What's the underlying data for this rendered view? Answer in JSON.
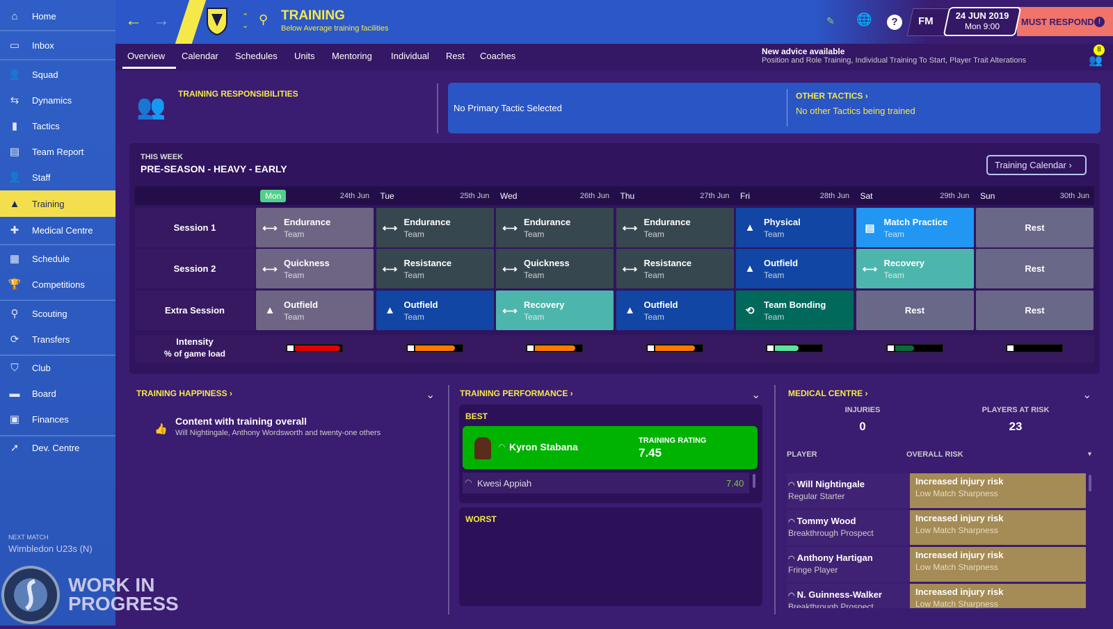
{
  "sidebar": {
    "items": [
      {
        "label": "Home",
        "icon": "home-icon"
      },
      {
        "label": "Inbox",
        "icon": "inbox-icon"
      },
      {
        "label": "Squad",
        "icon": "squad-icon"
      },
      {
        "label": "Dynamics",
        "icon": "dynamics-icon"
      },
      {
        "label": "Tactics",
        "icon": "tactics-icon"
      },
      {
        "label": "Team Report",
        "icon": "report-icon"
      },
      {
        "label": "Staff",
        "icon": "staff-icon"
      },
      {
        "label": "Training",
        "icon": "training-cone-icon",
        "active": true
      },
      {
        "label": "Medical Centre",
        "icon": "medical-icon"
      },
      {
        "label": "Schedule",
        "icon": "calendar-icon"
      },
      {
        "label": "Competitions",
        "icon": "trophy-icon"
      },
      {
        "label": "Scouting",
        "icon": "search-icon"
      },
      {
        "label": "Transfers",
        "icon": "transfer-icon"
      },
      {
        "label": "Club",
        "icon": "shield-icon"
      },
      {
        "label": "Board",
        "icon": "board-icon"
      },
      {
        "label": "Finances",
        "icon": "money-icon"
      },
      {
        "label": "Dev. Centre",
        "icon": "dev-icon"
      }
    ],
    "next_match_label": "NEXT MATCH",
    "next_match": "Wimbledon U23s (N)"
  },
  "watermark": {
    "line1": "WORK IN",
    "line2": "PROGRESS",
    "logo_text": "SPORTS INTERACTIVE www.sigames.com"
  },
  "header": {
    "title": "TRAINING",
    "subtitle": "Below Average training facilities",
    "date": "24 JUN 2019",
    "time": "Mon 9:00",
    "fm": "FM",
    "must_respond": "MUST RESPOND",
    "help": "?"
  },
  "tabs": [
    "Overview",
    "Calendar",
    "Schedules",
    "Units",
    "Mentoring",
    "Individual",
    "Rest",
    "Coaches"
  ],
  "advice": {
    "title": "New advice available",
    "text": "Position and Role Training, Individual Training To Start, Player Trait Alterations",
    "badge": "8"
  },
  "responsibilities": {
    "title": "TRAINING RESPONSIBILITIES"
  },
  "tactics": {
    "primary": "No Primary Tactic Selected",
    "other_title": "OTHER TACTICS",
    "other_text": "No other Tactics being trained"
  },
  "week": {
    "label": "THIS WEEK",
    "title": "PRE-SEASON - HEAVY - EARLY",
    "calendar_button": "Training Calendar",
    "days": [
      {
        "day": "Mon",
        "date": "24th Jun"
      },
      {
        "day": "Tue",
        "date": "25th Jun"
      },
      {
        "day": "Wed",
        "date": "26th Jun"
      },
      {
        "day": "Thu",
        "date": "27th Jun"
      },
      {
        "day": "Fri",
        "date": "28th Jun"
      },
      {
        "day": "Sat",
        "date": "29th Jun"
      },
      {
        "day": "Sun",
        "date": "30th Jun"
      }
    ],
    "rows": [
      {
        "label": "Session 1",
        "cells": [
          {
            "name": "Endurance",
            "unit": "Team",
            "icon": "dumbbell-icon",
            "color": "#6e6584"
          },
          {
            "name": "Endurance",
            "unit": "Team",
            "icon": "dumbbell-icon",
            "color": "#37474f"
          },
          {
            "name": "Endurance",
            "unit": "Team",
            "icon": "dumbbell-icon",
            "color": "#37474f"
          },
          {
            "name": "Endurance",
            "unit": "Team",
            "icon": "dumbbell-icon",
            "color": "#37474f"
          },
          {
            "name": "Physical",
            "unit": "Team",
            "icon": "cone-icon",
            "color": "#1146a4"
          },
          {
            "name": "Match Practice",
            "unit": "Team",
            "icon": "clipboard-icon",
            "color": "#2196f3"
          },
          {
            "name": "Rest",
            "color": "#6a6888"
          }
        ]
      },
      {
        "label": "Session 2",
        "cells": [
          {
            "name": "Quickness",
            "unit": "Team",
            "icon": "dumbbell-icon",
            "color": "#6e6584"
          },
          {
            "name": "Resistance",
            "unit": "Team",
            "icon": "dumbbell-icon",
            "color": "#37474f"
          },
          {
            "name": "Quickness",
            "unit": "Team",
            "icon": "dumbbell-icon",
            "color": "#37474f"
          },
          {
            "name": "Resistance",
            "unit": "Team",
            "icon": "dumbbell-icon",
            "color": "#37474f"
          },
          {
            "name": "Outfield",
            "unit": "Team",
            "icon": "cone-icon",
            "color": "#1146a4"
          },
          {
            "name": "Recovery",
            "unit": "Team",
            "icon": "dumbbell-icon",
            "color": "#4db6ac"
          },
          {
            "name": "Rest",
            "color": "#6a6888"
          }
        ]
      },
      {
        "label": "Extra Session",
        "cells": [
          {
            "name": "Outfield",
            "unit": "Team",
            "icon": "cone-icon",
            "color": "#6e6584"
          },
          {
            "name": "Outfield",
            "unit": "Team",
            "icon": "cone-icon",
            "color": "#1146a4"
          },
          {
            "name": "Recovery",
            "unit": "Team",
            "icon": "dumbbell-icon",
            "color": "#4db6ac"
          },
          {
            "name": "Outfield",
            "unit": "Team",
            "icon": "cone-icon",
            "color": "#1146a4"
          },
          {
            "name": "Team Bonding",
            "unit": "Team",
            "icon": "bonding-icon",
            "color": "#00695c"
          },
          {
            "name": "Rest",
            "color": "#6a6888"
          },
          {
            "name": "Rest",
            "color": "#6a6888"
          }
        ]
      }
    ],
    "intensity_label": "Intensity",
    "intensity_sub": "% of game load",
    "intensity": [
      {
        "pct": 95,
        "color": "#e00000"
      },
      {
        "pct": 85,
        "color": "#ff7a00"
      },
      {
        "pct": 85,
        "color": "#ff7a00"
      },
      {
        "pct": 85,
        "color": "#ff7a00"
      },
      {
        "pct": 50,
        "color": "#5be3a0"
      },
      {
        "pct": 40,
        "color": "#0a6b3a"
      },
      {
        "pct": 0,
        "color": "#000000"
      }
    ]
  },
  "happiness": {
    "title": "TRAINING HAPPINESS",
    "status": "Content with training overall",
    "detail": "Will Nightingale, Anthony Wordsworth and twenty-one others"
  },
  "performance": {
    "title": "TRAINING PERFORMANCE",
    "best_label": "BEST",
    "top_player": "Kyron Stabana",
    "rating_label": "TRAINING RATING",
    "top_rating": "7.45",
    "second_player": "Kwesi Appiah",
    "second_rating": "7.40",
    "worst_label": "WORST"
  },
  "medical": {
    "title": "MEDICAL CENTRE",
    "injuries_label": "INJURIES",
    "injuries": "0",
    "risk_label": "PLAYERS AT RISK",
    "risk": "23",
    "col_player": "PLAYER",
    "col_risk": "OVERALL RISK",
    "rows": [
      {
        "name": "Will Nightingale",
        "role": "Regular Starter",
        "risk": "Increased injury risk",
        "reason": "Low Match Sharpness"
      },
      {
        "name": "Tommy Wood",
        "role": "Breakthrough Prospect",
        "risk": "Increased injury risk",
        "reason": "Low Match Sharpness"
      },
      {
        "name": "Anthony Hartigan",
        "role": "Fringe Player",
        "risk": "Increased injury risk",
        "reason": "Low Match Sharpness"
      },
      {
        "name": "N. Guinness-Walker",
        "role": "Breakthrough Prospect",
        "risk": "Increased injury risk",
        "reason": "Low Match Sharpness"
      }
    ]
  }
}
